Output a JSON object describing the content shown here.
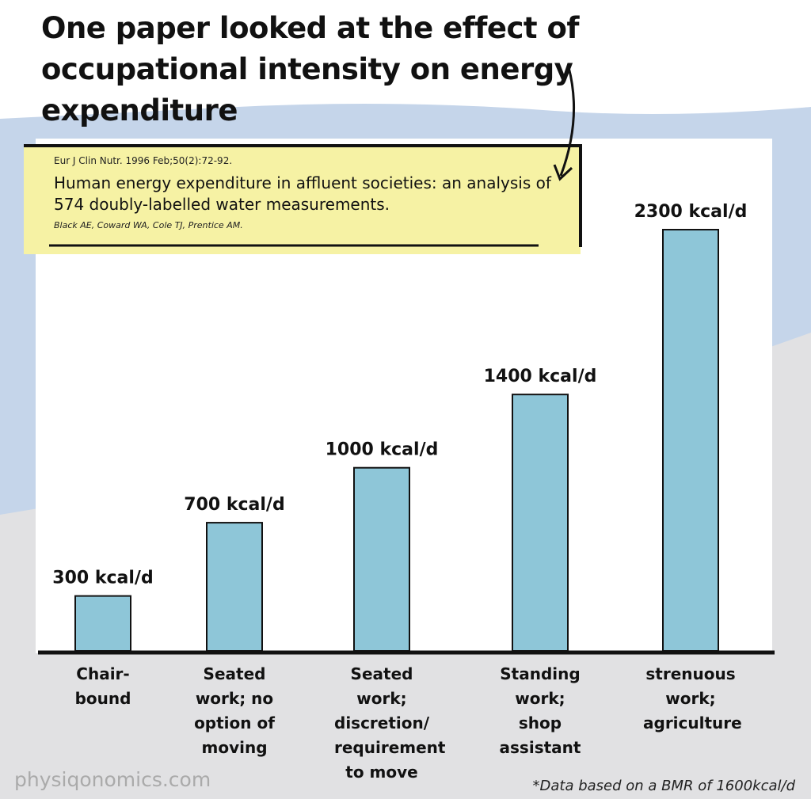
{
  "chart_data": {
    "type": "bar",
    "title": "One paper looked at the effect of occupational intensity on energy expenditure",
    "annotation": {
      "journal": "Eur J Clin Nutr. 1996 Feb;50(2):72-92.",
      "paper_title": "Human energy expenditure in affluent societies: an analysis of 574 doubly-labelled water measurements.",
      "authors": "Black AE, Coward WA, Cole TJ, Prentice AM."
    },
    "categories": [
      "Chair-bound",
      "Seated work; no option of moving",
      "Seated work; discretion/ requirement to move",
      "Standing work; shop assistant",
      "strenuous work; agriculture"
    ],
    "values": [
      300,
      700,
      1000,
      1400,
      2300
    ],
    "value_labels": [
      "300 kcal/d",
      "700 kcal/d",
      "1000 kcal/d",
      "1400 kcal/d",
      "2300 kcal/d"
    ],
    "color": "#8ec6d8",
    "source": "physiqonomics.com",
    "footnote": "*Data based on a BMR of 1600kcal/d"
  }
}
